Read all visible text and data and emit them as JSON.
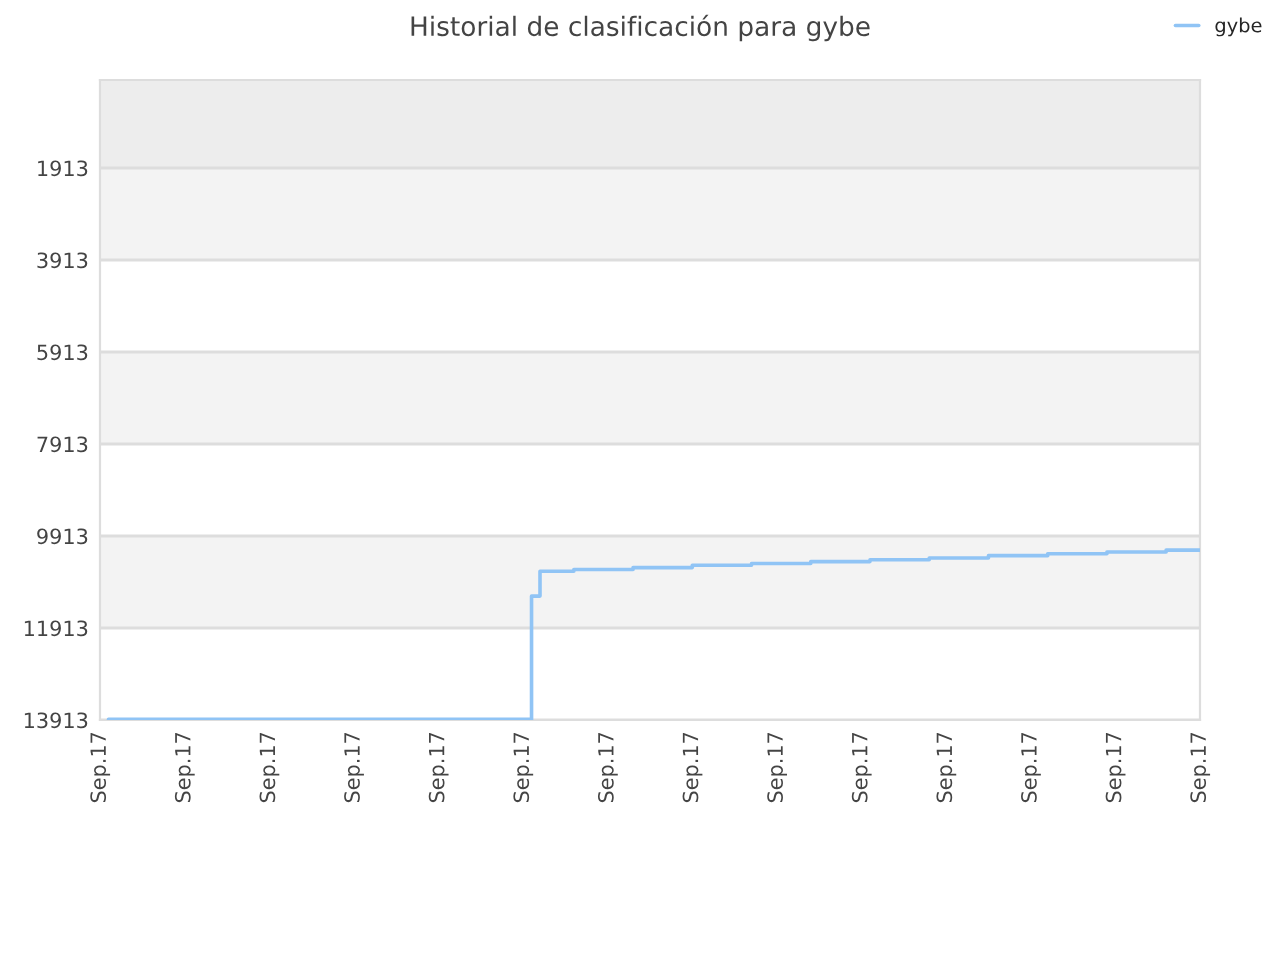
{
  "chart_data": {
    "type": "step",
    "title": "Historial de clasificación para gybe",
    "categories": [
      "Sep.17",
      null,
      null,
      null,
      null,
      null,
      null,
      null,
      null,
      null,
      "Sep.17",
      null,
      null,
      null,
      null,
      null,
      null,
      null,
      null,
      null,
      "Sep.17",
      null,
      null,
      null,
      null,
      null,
      null,
      null,
      null,
      null,
      "Sep.17",
      null,
      null,
      null,
      null,
      null,
      null,
      null,
      null,
      null,
      "Sep.17",
      null,
      null,
      null,
      null,
      null,
      null,
      null,
      null,
      null,
      "Sep.17",
      null,
      null,
      null,
      null,
      null,
      null,
      null,
      null,
      null,
      "Sep.17",
      null,
      null,
      null,
      null,
      null,
      null,
      null,
      null,
      null,
      "Sep.17",
      null,
      null,
      null,
      null,
      null,
      null,
      null,
      null,
      null,
      "Sep.17",
      null,
      null,
      null,
      null,
      null,
      null,
      null,
      null,
      null,
      "Sep.17",
      null,
      null,
      null,
      null,
      null,
      null,
      null,
      null,
      null,
      "Sep.17",
      null,
      null,
      null,
      null,
      null,
      null,
      null,
      null,
      null,
      "Sep.17",
      null,
      null,
      null,
      null,
      null,
      null,
      null,
      null,
      null,
      "Sep.17",
      null,
      null,
      null,
      null,
      null,
      null,
      null,
      null,
      null,
      "Sep.17"
    ],
    "series": [
      {
        "name": "gybe",
        "color": "#90c4f5",
        "values": [
          null,
          13900,
          13900,
          13900,
          13900,
          13900,
          13900,
          13900,
          13900,
          13900,
          13900,
          13900,
          13900,
          13900,
          13900,
          13900,
          13900,
          13900,
          13900,
          13900,
          13900,
          13900,
          13900,
          13900,
          13900,
          13900,
          13900,
          13900,
          13900,
          13900,
          13900,
          13900,
          13900,
          13900,
          13900,
          13900,
          13900,
          13900,
          13900,
          13900,
          13900,
          13900,
          13900,
          13900,
          13900,
          13900,
          13900,
          13900,
          13900,
          13900,
          13900,
          11220,
          10680,
          10680,
          10680,
          10680,
          10640,
          10640,
          10640,
          10640,
          10640,
          10640,
          10640,
          10600,
          10600,
          10600,
          10600,
          10600,
          10600,
          10600,
          10550,
          10550,
          10550,
          10550,
          10550,
          10550,
          10550,
          10510,
          10510,
          10510,
          10510,
          10510,
          10510,
          10510,
          10470,
          10470,
          10470,
          10470,
          10470,
          10470,
          10470,
          10430,
          10430,
          10430,
          10430,
          10430,
          10430,
          10430,
          10390,
          10390,
          10390,
          10390,
          10390,
          10390,
          10390,
          10340,
          10340,
          10340,
          10340,
          10340,
          10340,
          10340,
          10300,
          10300,
          10300,
          10300,
          10300,
          10300,
          10300,
          10260,
          10260,
          10260,
          10260,
          10260,
          10260,
          10260,
          10220,
          10220,
          10220,
          10220,
          10220
        ]
      }
    ],
    "ylim": [
      13913,
      0
    ],
    "yticks": [
      1913,
      3913,
      5913,
      7913,
      9913,
      11913,
      13913
    ],
    "bands": [
      {
        "axis": "y",
        "from": 0,
        "to": 1913,
        "color": "#ededed"
      },
      {
        "axis": "y",
        "from": 1913,
        "to": 3913,
        "color": "#f3f3f3"
      },
      {
        "axis": "y",
        "from": 5913,
        "to": 7913,
        "color": "#f3f3f3"
      },
      {
        "axis": "y",
        "from": 9913,
        "to": 11913,
        "color": "#f3f3f3"
      }
    ],
    "grid": "y",
    "legend": "top right",
    "marker": "none",
    "line_style": "solid"
  }
}
